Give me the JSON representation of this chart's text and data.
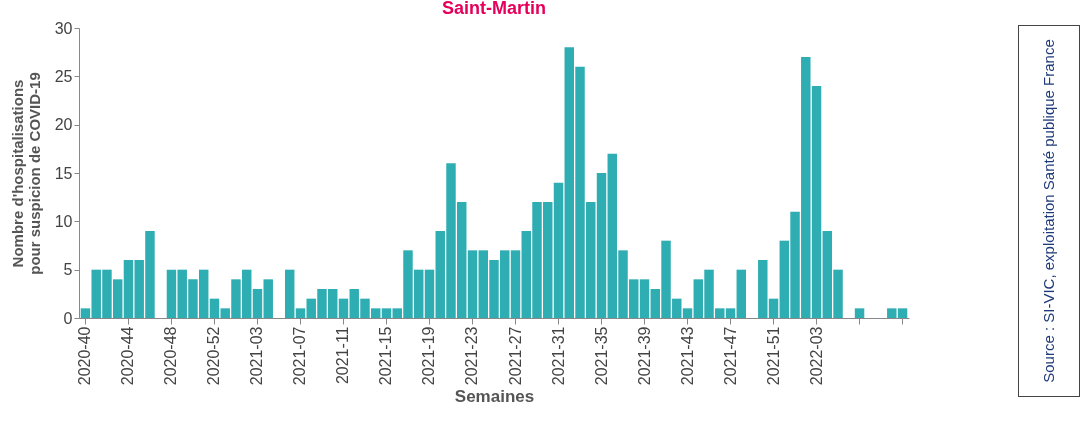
{
  "chart_data": {
    "type": "bar",
    "title": "Saint-Martin",
    "xlabel": "Semaines",
    "ylabel": "Nombre d'hospitalisations pour suspicion de COVID-19",
    "categories": [
      "2020-40",
      null,
      null,
      null,
      "2020-44",
      null,
      null,
      null,
      "2020-48",
      null,
      null,
      null,
      "2020-52",
      null,
      null,
      null,
      "2021-03",
      null,
      null,
      null,
      "2021-07",
      null,
      null,
      null,
      "2021-11",
      null,
      null,
      null,
      "2021-15",
      null,
      null,
      null,
      "2021-19",
      null,
      null,
      null,
      "2021-23",
      null,
      null,
      null,
      "2021-27",
      null,
      null,
      null,
      "2021-31",
      null,
      null,
      null,
      "2021-35",
      null,
      null,
      null,
      "2021-39",
      null,
      null,
      null,
      "2021-43",
      null,
      null,
      null,
      "2021-47",
      null,
      null,
      null,
      "2021-51",
      null,
      null,
      null,
      "2022-03",
      null,
      null,
      null,
      null,
      null,
      null,
      null,
      null
    ],
    "values": [
      1,
      5,
      5,
      4,
      6,
      6,
      9,
      0,
      5,
      5,
      4,
      5,
      2,
      1,
      4,
      5,
      3,
      4,
      0,
      5,
      1,
      2,
      3,
      3,
      2,
      3,
      2,
      1,
      1,
      1,
      7,
      5,
      5,
      9,
      16,
      12,
      7,
      7,
      6,
      7,
      7,
      9,
      12,
      12,
      14,
      28,
      26,
      12,
      15,
      17,
      7,
      4,
      4,
      3,
      8,
      2,
      1,
      4,
      5,
      1,
      1,
      5,
      0,
      6,
      2,
      8,
      11,
      27,
      24,
      9,
      5,
      0,
      1,
      0,
      0,
      1,
      1
    ],
    "color": "#2eadb2",
    "ylim": [
      0,
      30
    ],
    "yticks": [
      0,
      5,
      10,
      15,
      20,
      25,
      30
    ],
    "grid": false,
    "annotations": [
      "Source : SI-VIC, exploitation Santé publique France"
    ]
  }
}
